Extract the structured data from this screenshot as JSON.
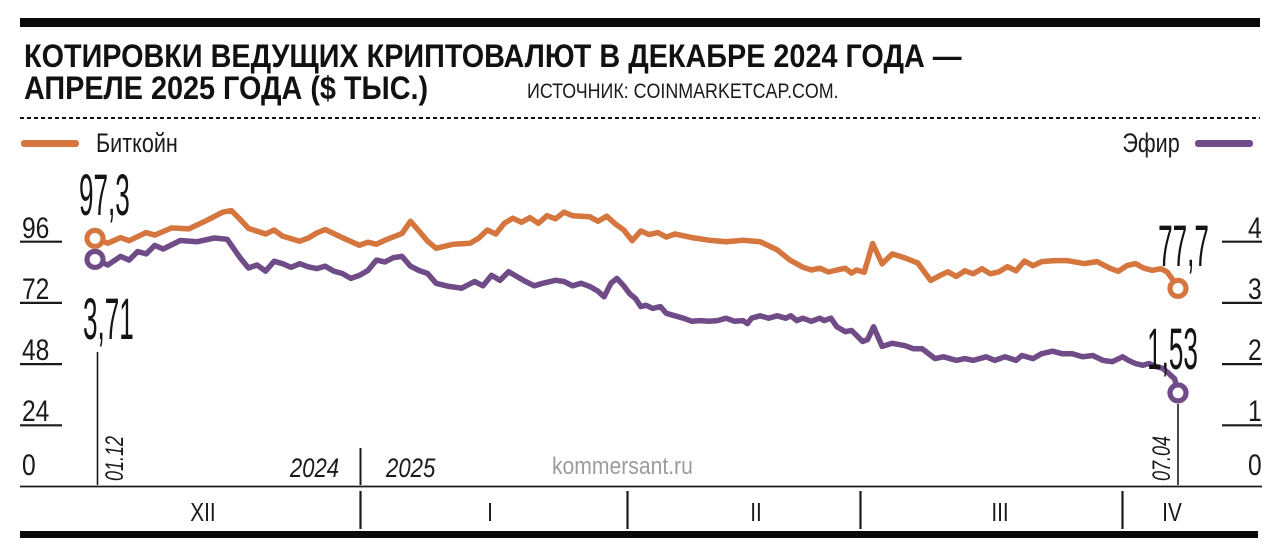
{
  "header": {
    "title_line1": "КОТИРОВКИ ВЕДУЩИХ КРИПТОВАЛЮТ В ДЕКАБРЕ 2024 ГОДА —",
    "title_line2": "АПРЕЛЕ 2025 ГОДА ($ ТЫС.)",
    "source": "ИСТОЧНИК: COINMARKETCAP.COM."
  },
  "legend": {
    "bitcoin": "Биткойн",
    "ether": "Эфир"
  },
  "watermark": "kommersant.ru",
  "colors": {
    "bitcoin": "#D5763F",
    "ether": "#6F4C87",
    "axis": "#1a1a1a",
    "watermark": "#9c9c9c",
    "bars": "#0a0a0a"
  },
  "annotations": {
    "btc_start": "97,3",
    "eth_start": "3,71",
    "btc_end": "77,7",
    "eth_end": "1,53"
  },
  "axes": {
    "left_labels": [
      "96",
      "72",
      "48",
      "24",
      "0"
    ],
    "right_labels": [
      "4",
      "3",
      "2",
      "1",
      "0"
    ],
    "months": [
      "XII",
      "I",
      "II",
      "III",
      "IV"
    ],
    "year_left": "2024",
    "year_right": "2025",
    "start_date": "01.12",
    "end_date": "07.04"
  },
  "chart_data": {
    "type": "line",
    "title": "КОТИРОВКИ ВЕДУЩИХ КРИПТОВАЛЮТ В ДЕКАБРЕ 2024 ГОДА — АПРЕЛЕ 2025 ГОДА ($ ТЫС.)",
    "source": "COINMARKETCAP.COM",
    "x_axis": {
      "start_date": "01.12.2024",
      "end_date": "07.04.2025",
      "month_labels": [
        "XII",
        "I",
        "II",
        "III",
        "IV"
      ],
      "day_span": 127
    },
    "left_axis": {
      "label": "Биткойн, $ тыс.",
      "ticks": [
        96,
        72,
        48,
        24,
        0
      ],
      "lim": [
        0,
        112
      ]
    },
    "right_axis": {
      "label": "Эфир, $ тыс.",
      "ticks": [
        4,
        3,
        2,
        1,
        0
      ],
      "lim": [
        0,
        4.67
      ]
    },
    "legend_position": "top",
    "grid": "side-ticks-only",
    "series": [
      {
        "name": "Биткойн",
        "axis": "left",
        "color": "#D5763F",
        "first_value": 97.3,
        "last_value": 77.7,
        "points": [
          [
            0,
            97.3
          ],
          [
            1.5,
            95.4
          ],
          [
            3,
            97.6
          ],
          [
            4,
            96.4
          ],
          [
            6,
            99.6
          ],
          [
            7,
            98.6
          ],
          [
            9,
            101.4
          ],
          [
            11,
            101.0
          ],
          [
            13,
            104.2
          ],
          [
            15,
            107.6
          ],
          [
            16,
            108.2
          ],
          [
            17,
            104.8
          ],
          [
            18,
            101.2
          ],
          [
            20,
            99.0
          ],
          [
            21,
            100.6
          ],
          [
            22,
            98.2
          ],
          [
            24,
            96.2
          ],
          [
            25,
            97.4
          ],
          [
            26,
            99.4
          ],
          [
            27,
            100.8
          ],
          [
            29,
            97.6
          ],
          [
            31,
            94.6
          ],
          [
            32,
            95.8
          ],
          [
            33,
            95.0
          ],
          [
            34,
            96.6
          ],
          [
            36,
            99.2
          ],
          [
            37,
            104.0
          ],
          [
            38,
            100.2
          ],
          [
            39,
            96.2
          ],
          [
            40,
            93.4
          ],
          [
            42,
            95.0
          ],
          [
            44,
            95.4
          ],
          [
            45,
            97.4
          ],
          [
            46,
            100.6
          ],
          [
            47,
            99.0
          ],
          [
            48,
            103.2
          ],
          [
            49,
            105.2
          ],
          [
            50,
            103.6
          ],
          [
            51,
            105.4
          ],
          [
            52,
            103.2
          ],
          [
            53,
            106.2
          ],
          [
            54,
            105.0
          ],
          [
            55,
            107.6
          ],
          [
            56,
            106.2
          ],
          [
            58,
            105.8
          ],
          [
            59,
            104.0
          ],
          [
            60,
            106.0
          ],
          [
            61,
            103.0
          ],
          [
            62,
            100.6
          ],
          [
            63,
            96.4
          ],
          [
            64,
            100.2
          ],
          [
            65,
            98.8
          ],
          [
            66,
            99.6
          ],
          [
            67,
            97.8
          ],
          [
            68,
            99.0
          ],
          [
            70,
            97.6
          ],
          [
            72,
            96.6
          ],
          [
            74,
            96.0
          ],
          [
            76,
            96.6
          ],
          [
            78,
            96.0
          ],
          [
            80,
            92.8
          ],
          [
            81.5,
            88.8
          ],
          [
            83,
            86.0
          ],
          [
            84,
            84.9
          ],
          [
            85,
            85.6
          ],
          [
            86,
            84.1
          ],
          [
            87,
            84.9
          ],
          [
            88,
            85.6
          ],
          [
            88.7,
            83.7
          ],
          [
            89.3,
            84.9
          ],
          [
            90.2,
            84.0
          ],
          [
            91.2,
            95.3
          ],
          [
            92.3,
            87.3
          ],
          [
            93.5,
            91.2
          ],
          [
            95,
            89.6
          ],
          [
            96.5,
            87.6
          ],
          [
            98,
            80.8
          ],
          [
            99,
            82.6
          ],
          [
            100,
            84.2
          ],
          [
            101,
            82.4
          ],
          [
            102,
            84.6
          ],
          [
            103,
            83.4
          ],
          [
            104,
            85.4
          ],
          [
            105,
            83.4
          ],
          [
            106,
            84.2
          ],
          [
            107,
            86.2
          ],
          [
            108,
            84.6
          ],
          [
            109,
            88.4
          ],
          [
            110,
            86.6
          ],
          [
            111,
            88.2
          ],
          [
            112.5,
            88.6
          ],
          [
            114,
            88.6
          ],
          [
            116,
            87.4
          ],
          [
            117.5,
            88.2
          ],
          [
            119,
            85.6
          ],
          [
            120,
            84.4
          ],
          [
            121,
            86.6
          ],
          [
            122,
            87.4
          ],
          [
            123,
            85.6
          ],
          [
            124,
            84.8
          ],
          [
            125,
            85.4
          ],
          [
            125.7,
            84.2
          ],
          [
            126.4,
            81.0
          ],
          [
            127,
            77.7
          ]
        ]
      },
      {
        "name": "Эфир",
        "axis": "right",
        "color": "#6F4C87",
        "first_value": 3.71,
        "last_value": 1.53,
        "points": [
          [
            0,
            3.71
          ],
          [
            1.5,
            3.62
          ],
          [
            3,
            3.76
          ],
          [
            4,
            3.7
          ],
          [
            5,
            3.84
          ],
          [
            6,
            3.8
          ],
          [
            7,
            3.94
          ],
          [
            8,
            3.88
          ],
          [
            10,
            4.02
          ],
          [
            12,
            4.0
          ],
          [
            14,
            4.06
          ],
          [
            15.5,
            4.04
          ],
          [
            17,
            3.74
          ],
          [
            18,
            3.57
          ],
          [
            19,
            3.62
          ],
          [
            20,
            3.52
          ],
          [
            21,
            3.68
          ],
          [
            22,
            3.64
          ],
          [
            23,
            3.58
          ],
          [
            24,
            3.64
          ],
          [
            25,
            3.59
          ],
          [
            26,
            3.56
          ],
          [
            27,
            3.6
          ],
          [
            28,
            3.52
          ],
          [
            29,
            3.48
          ],
          [
            30,
            3.4
          ],
          [
            31,
            3.45
          ],
          [
            32,
            3.53
          ],
          [
            33,
            3.7
          ],
          [
            34,
            3.67
          ],
          [
            35,
            3.74
          ],
          [
            36,
            3.76
          ],
          [
            37,
            3.6
          ],
          [
            38,
            3.53
          ],
          [
            39,
            3.48
          ],
          [
            40,
            3.32
          ],
          [
            41.5,
            3.27
          ],
          [
            43,
            3.24
          ],
          [
            44.5,
            3.35
          ],
          [
            45.5,
            3.28
          ],
          [
            46.5,
            3.45
          ],
          [
            47.5,
            3.37
          ],
          [
            48.5,
            3.51
          ],
          [
            49.5,
            3.43
          ],
          [
            50.5,
            3.35
          ],
          [
            51.5,
            3.28
          ],
          [
            52.5,
            3.32
          ],
          [
            54,
            3.37
          ],
          [
            55,
            3.35
          ],
          [
            56,
            3.28
          ],
          [
            57,
            3.32
          ],
          [
            58,
            3.27
          ],
          [
            59,
            3.19
          ],
          [
            59.7,
            3.1
          ],
          [
            60.5,
            3.32
          ],
          [
            61.2,
            3.4
          ],
          [
            62,
            3.28
          ],
          [
            62.7,
            3.15
          ],
          [
            63.4,
            3.07
          ],
          [
            64,
            2.94
          ],
          [
            64.6,
            2.96
          ],
          [
            65.4,
            2.91
          ],
          [
            66.3,
            2.94
          ],
          [
            67,
            2.83
          ],
          [
            68,
            2.79
          ],
          [
            69,
            2.75
          ],
          [
            70,
            2.7
          ],
          [
            71,
            2.71
          ],
          [
            72,
            2.7
          ],
          [
            73,
            2.71
          ],
          [
            74,
            2.75
          ],
          [
            75,
            2.7
          ],
          [
            76,
            2.71
          ],
          [
            76.5,
            2.66
          ],
          [
            77,
            2.75
          ],
          [
            78,
            2.79
          ],
          [
            79,
            2.75
          ],
          [
            80,
            2.79
          ],
          [
            81,
            2.75
          ],
          [
            81.6,
            2.79
          ],
          [
            82.3,
            2.71
          ],
          [
            83,
            2.75
          ],
          [
            84,
            2.7
          ],
          [
            85,
            2.75
          ],
          [
            85.5,
            2.71
          ],
          [
            86.3,
            2.75
          ],
          [
            87,
            2.61
          ],
          [
            88,
            2.53
          ],
          [
            88.7,
            2.55
          ],
          [
            89.3,
            2.47
          ],
          [
            90,
            2.37
          ],
          [
            90.6,
            2.4
          ],
          [
            91.3,
            2.61
          ],
          [
            92.3,
            2.29
          ],
          [
            93.5,
            2.34
          ],
          [
            95,
            2.3
          ],
          [
            96,
            2.25
          ],
          [
            97,
            2.25
          ],
          [
            98.5,
            2.09
          ],
          [
            99.5,
            2.12
          ],
          [
            101,
            2.06
          ],
          [
            102,
            2.09
          ],
          [
            103,
            2.06
          ],
          [
            104.5,
            2.12
          ],
          [
            105.5,
            2.06
          ],
          [
            106.7,
            2.12
          ],
          [
            108,
            2.06
          ],
          [
            108.7,
            2.14
          ],
          [
            110,
            2.09
          ],
          [
            111,
            2.17
          ],
          [
            112.3,
            2.21
          ],
          [
            113.4,
            2.17
          ],
          [
            114.6,
            2.17
          ],
          [
            115.8,
            2.12
          ],
          [
            117,
            2.14
          ],
          [
            118.2,
            2.06
          ],
          [
            119.3,
            2.04
          ],
          [
            120.5,
            2.12
          ],
          [
            121.2,
            2.06
          ],
          [
            122,
            2.01
          ],
          [
            122.9,
            1.98
          ],
          [
            123.6,
            2.01
          ],
          [
            124.4,
            1.96
          ],
          [
            125.2,
            1.93
          ],
          [
            125.9,
            1.85
          ],
          [
            126.6,
            1.76
          ],
          [
            127,
            1.53
          ]
        ]
      }
    ]
  }
}
